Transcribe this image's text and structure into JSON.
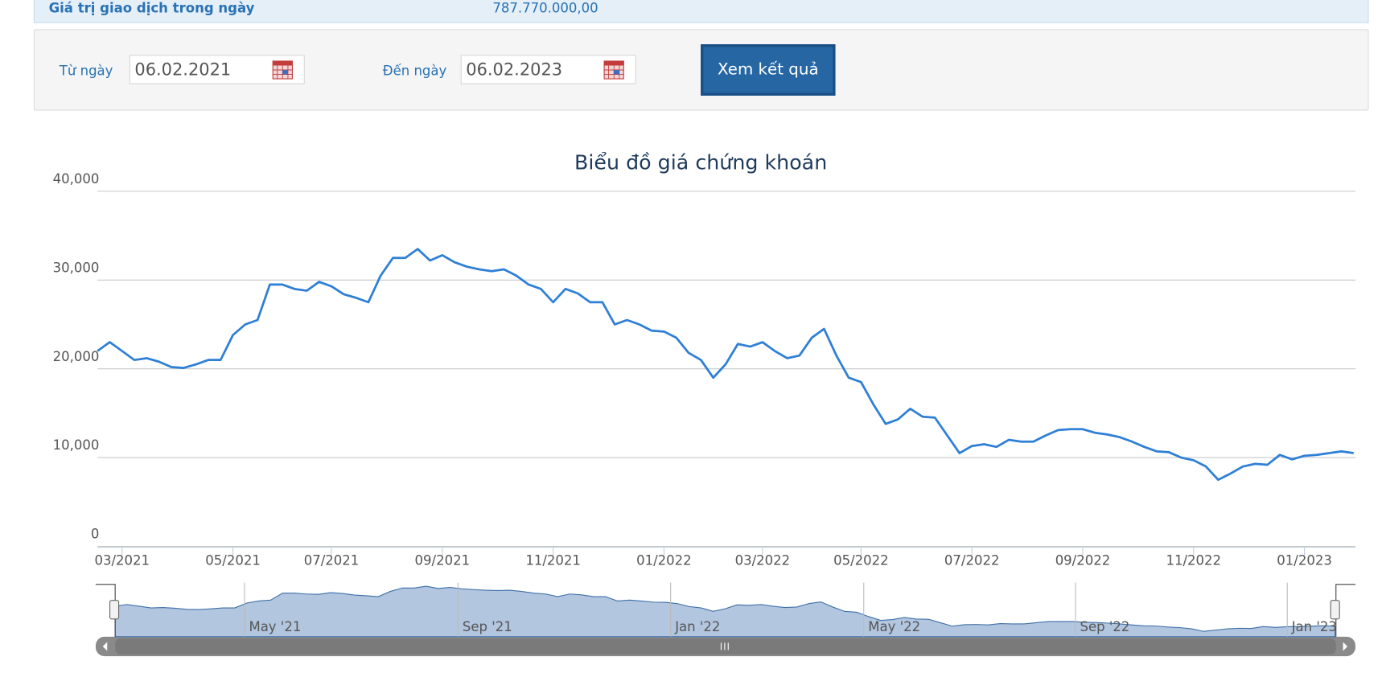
{
  "summary": {
    "label": "Giá trị giao dịch trong ngày",
    "value": "787.770.000,00"
  },
  "form": {
    "from_label": "Từ ngày",
    "from_value": "06.02.2021",
    "to_label": "Đến ngày",
    "to_value": "06.02.2023",
    "button": "Xem kết quả"
  },
  "chart_data": {
    "type": "line",
    "title": "Biểu đồ giá chứng khoán",
    "color": "#2e7fd6",
    "grid": true,
    "categories": [
      null,
      null,
      "03/2021",
      null,
      null,
      null,
      null,
      null,
      null,
      null,
      null,
      "05/2021",
      null,
      null,
      null,
      null,
      null,
      null,
      null,
      "07/2021",
      null,
      null,
      null,
      null,
      null,
      null,
      null,
      null,
      "09/2021",
      null,
      null,
      null,
      null,
      null,
      null,
      null,
      null,
      "11/2021",
      null,
      null,
      null,
      null,
      null,
      null,
      null,
      null,
      "01/2022",
      null,
      null,
      null,
      null,
      null,
      null,
      null,
      "03/2022",
      null,
      null,
      null,
      null,
      null,
      null,
      null,
      "05/2022",
      null,
      null,
      null,
      null,
      null,
      null,
      null,
      null,
      "07/2022",
      null,
      null,
      null,
      null,
      null,
      null,
      null,
      null,
      "09/2022",
      null,
      null,
      null,
      null,
      null,
      null,
      null,
      null,
      "11/2022",
      null,
      null,
      null,
      null,
      null,
      null,
      null,
      null,
      "01/2023",
      null,
      null,
      null,
      null
    ],
    "values": [
      22000,
      23000,
      22000,
      21000,
      21200,
      20800,
      20200,
      20100,
      20500,
      21000,
      21000,
      23800,
      25000,
      25500,
      29500,
      29500,
      29000,
      28800,
      29800,
      29300,
      28400,
      28000,
      27500,
      30500,
      32500,
      32500,
      33500,
      32200,
      32800,
      32000,
      31500,
      31200,
      31000,
      31200,
      30500,
      29500,
      29000,
      27500,
      29000,
      28500,
      27500,
      27500,
      25000,
      25500,
      25000,
      24300,
      24200,
      23500,
      21800,
      21000,
      19000,
      20500,
      22800,
      22500,
      23000,
      22000,
      21200,
      21500,
      23500,
      24500,
      21500,
      19000,
      18500,
      16000,
      13800,
      14300,
      15500,
      14600,
      14500,
      12500,
      10500,
      11300,
      11500,
      11200,
      12000,
      11800,
      11800,
      12500,
      13100,
      13200,
      13200,
      12800,
      12600,
      12300,
      11800,
      11200,
      10700,
      10600,
      10000,
      9700,
      9000,
      7500,
      8200,
      9000,
      9300,
      9200,
      10300,
      9800,
      10200,
      10300,
      10500,
      10700,
      10500
    ],
    "ylim": [
      0,
      40000
    ],
    "yticks": [
      0,
      {
        "value": 10000,
        "label": "10,000"
      },
      {
        "value": 20000,
        "label": "20,000"
      },
      {
        "value": 30000,
        "label": "30,000"
      },
      {
        "value": 40000,
        "label": "40,000"
      }
    ],
    "navigator_labels": [
      "May '21",
      "Sep '21",
      "Jan '22",
      "May '22",
      "Sep '22",
      "Jan '23"
    ]
  }
}
